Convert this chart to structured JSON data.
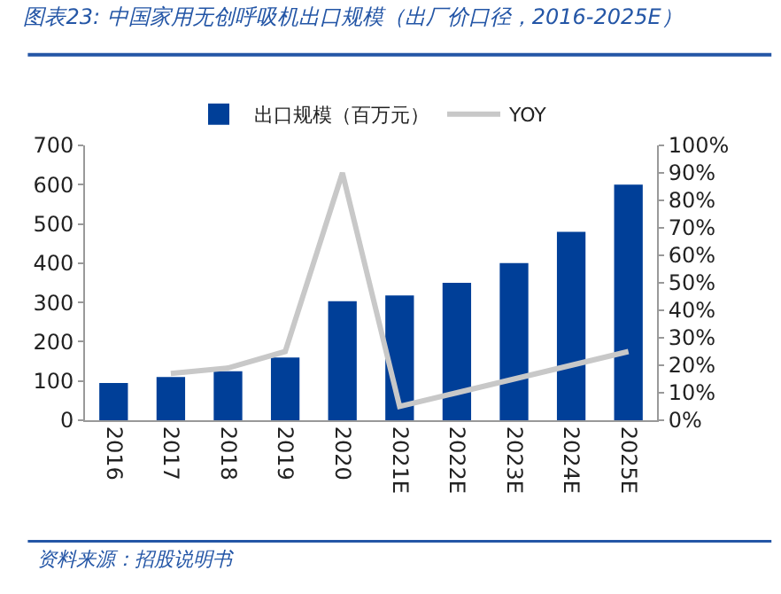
{
  "chart_data": {
    "type": "bar",
    "title": "图表23: 中国家用无创呼吸机出口规模（出厂价口径，2016-2025E）",
    "annotations": [
      "资料来源：招股说明书"
    ],
    "categories": [
      "2016",
      "2017",
      "2018",
      "2019",
      "2020",
      "2021E",
      "2022E",
      "2023E",
      "2024E",
      "2025E"
    ],
    "series": [
      {
        "name": "出口规模（百万元）",
        "color": "#003f98",
        "values": [
          95,
          110,
          125,
          160,
          303,
          318,
          350,
          400,
          480,
          600
        ]
      },
      {
        "name": "YOY",
        "type": "line",
        "axis": "y2",
        "color": "#c8c8c8",
        "values": [
          null,
          17,
          19,
          25,
          90,
          5,
          10,
          15,
          20,
          25
        ]
      }
    ],
    "ylim": [
      0,
      700
    ],
    "yticks": [
      0,
      100,
      200,
      300,
      400,
      500,
      600,
      700
    ],
    "y2lim": [
      0,
      100
    ],
    "y2ticks": [
      {
        "value": 0,
        "label": "0%"
      },
      {
        "value": 10,
        "label": "10%"
      },
      {
        "value": 20,
        "label": "20%"
      },
      {
        "value": 30,
        "label": "30%"
      },
      {
        "value": 40,
        "label": "40%"
      },
      {
        "value": 50,
        "label": "50%"
      },
      {
        "value": 60,
        "label": "60%"
      },
      {
        "value": 70,
        "label": "70%"
      },
      {
        "value": 80,
        "label": "80%"
      },
      {
        "value": 90,
        "label": "90%"
      },
      {
        "value": 100,
        "label": "100%"
      }
    ],
    "legend": "top"
  }
}
